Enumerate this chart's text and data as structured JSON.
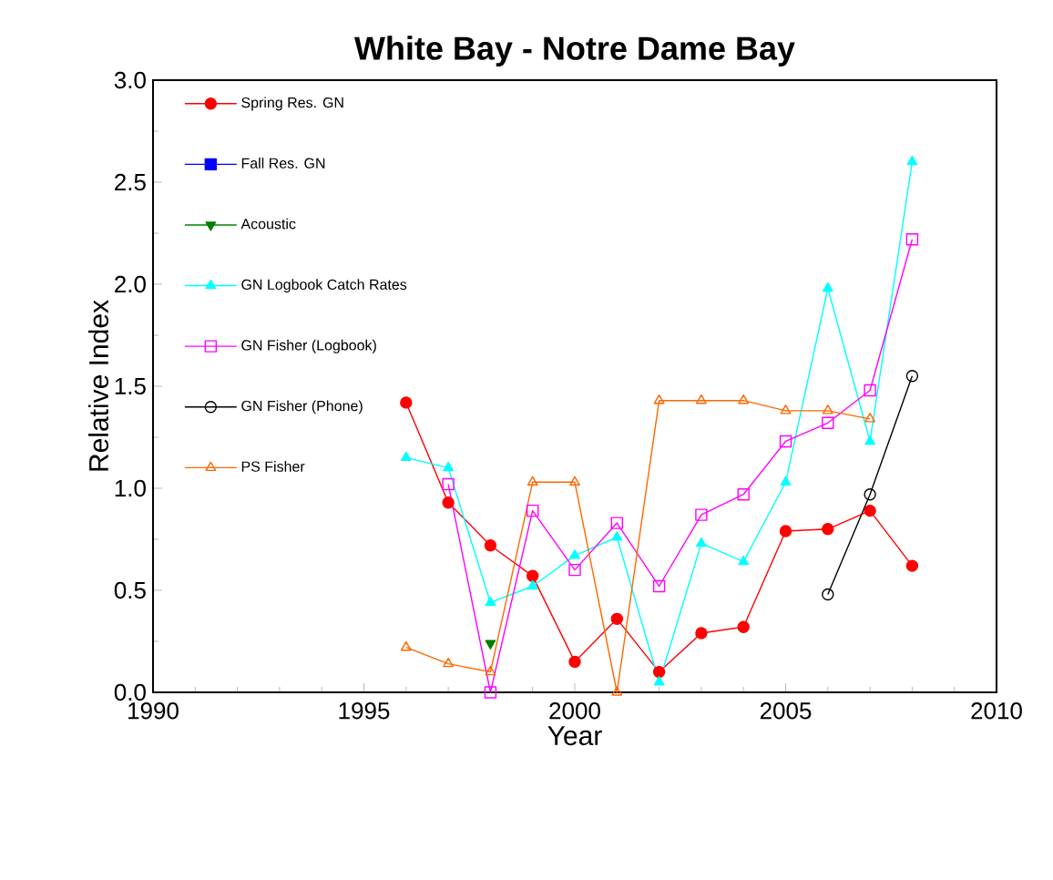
{
  "chart_data": {
    "type": "line",
    "title": "White Bay - Notre Dame Bay",
    "xlabel": "Year",
    "ylabel": "Relative Index",
    "xlim": [
      1990,
      2010
    ],
    "ylim": [
      0,
      3
    ],
    "xticks": [
      1990,
      1995,
      2000,
      2005,
      2010
    ],
    "yticks": [
      {
        "value": 0,
        "label": "0.0"
      },
      {
        "value": 0.5,
        "label": "0.5"
      },
      {
        "value": 1,
        "label": "1.0"
      },
      {
        "value": 1.5,
        "label": "1.5"
      },
      {
        "value": 2,
        "label": "2.0"
      },
      {
        "value": 2.5,
        "label": "2.5"
      },
      {
        "value": 3,
        "label": "3.0"
      }
    ],
    "grid": false,
    "legend": "top left",
    "line_style": "solid",
    "series": [
      {
        "name": "Spring Res. GN",
        "color": "#ff0000",
        "marker": "circle",
        "x": [
          1996,
          1997,
          1998,
          1999,
          2000,
          2001,
          2002,
          2003,
          2004,
          2005,
          2006,
          2007,
          2008
        ],
        "values": [
          1.42,
          0.93,
          0.72,
          0.57,
          0.15,
          0.36,
          0.1,
          0.29,
          0.32,
          0.79,
          0.8,
          0.89,
          0.62
        ]
      },
      {
        "name": "Fall Res. GN",
        "color": "#0000ff",
        "marker": "square"
      },
      {
        "name": "Acoustic",
        "color": "#008000",
        "marker": "triangle",
        "x": [
          1998
        ],
        "values": [
          0.24
        ]
      },
      {
        "name": "GN Logbook Catch Rates",
        "color": "#00ffff",
        "marker": "triangle",
        "x": [
          1996,
          1997,
          1998,
          1999,
          2000,
          2001,
          2002,
          2003,
          2004,
          2005,
          2006,
          2007,
          2008
        ],
        "values": [
          1.15,
          1.1,
          0.44,
          0.52,
          0.67,
          0.76,
          0.05,
          0.73,
          0.64,
          1.03,
          1.98,
          1.23,
          2.6
        ]
      },
      {
        "name": "GN Fisher (Logbook)",
        "color": "#ff00ff",
        "marker": "square",
        "x": [
          1997,
          1998,
          1999,
          2000,
          2001,
          2002,
          2003,
          2004,
          2005,
          2006,
          2007,
          2008
        ],
        "values": [
          1.02,
          0.0,
          0.89,
          0.6,
          0.83,
          0.52,
          0.87,
          0.97,
          1.23,
          1.32,
          1.48,
          2.22
        ]
      },
      {
        "name": "GN Fisher (Phone)",
        "color": "#000000",
        "marker": "circle",
        "x": [
          2006,
          2007,
          2008
        ],
        "values": [
          0.48,
          0.97,
          1.55
        ]
      },
      {
        "name": "PS Fisher",
        "color": "#ff6600",
        "marker": "triangle",
        "x": [
          1996,
          1997,
          1998,
          1999,
          2000,
          2001,
          2002,
          2003,
          2004,
          2005,
          2006,
          2007
        ],
        "values": [
          0.22,
          0.14,
          0.1,
          1.03,
          1.03,
          0.0,
          1.43,
          1.43,
          1.43,
          1.38,
          1.38,
          1.34
        ]
      }
    ]
  }
}
